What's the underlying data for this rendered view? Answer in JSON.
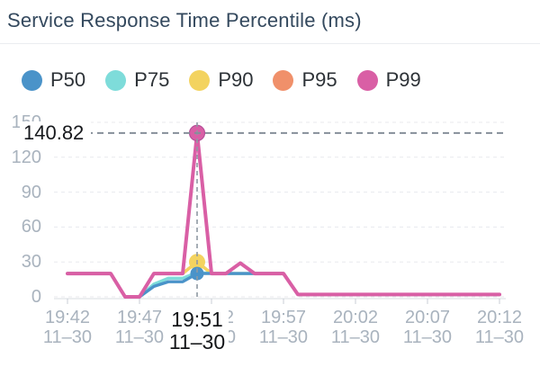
{
  "header": {
    "title": "Service Response Time Percentile (ms)"
  },
  "chart_data": {
    "type": "line",
    "title": "Service Response Time Percentile (ms)",
    "xlabel": "",
    "ylabel": "",
    "ylim": [
      0,
      150
    ],
    "y_ticks": [
      0,
      30,
      60,
      90,
      120,
      150
    ],
    "grid": true,
    "legend_position": "top",
    "x_ticks": [
      {
        "minute": 0,
        "time": "19:42",
        "date": "11–30"
      },
      {
        "minute": 5,
        "time": "19:47",
        "date": "11–30"
      },
      {
        "minute": 10,
        "time": "19:52",
        "date": "11–30"
      },
      {
        "minute": 15,
        "time": "19:57",
        "date": "11–30"
      },
      {
        "minute": 20,
        "time": "20:02",
        "date": "11–30"
      },
      {
        "minute": 25,
        "time": "20:07",
        "date": "11–30"
      },
      {
        "minute": 30,
        "time": "20:12",
        "date": "11–30"
      }
    ],
    "x_minutes": [
      0,
      1,
      2,
      3,
      4,
      5,
      6,
      7,
      8,
      9,
      10,
      11,
      12,
      13,
      14,
      15,
      16,
      17,
      18,
      19,
      20,
      21,
      22,
      23,
      24,
      25,
      26,
      27,
      28,
      29,
      30
    ],
    "series": [
      {
        "name": "P50",
        "color": "#4a93c9",
        "z": 4,
        "values": [
          20,
          20,
          20,
          20,
          0,
          0,
          9,
          13,
          13,
          20,
          20,
          20,
          20,
          20,
          20,
          20,
          2,
          2,
          2,
          2,
          2,
          2,
          2,
          2,
          2,
          2,
          2,
          2,
          2,
          2,
          2
        ]
      },
      {
        "name": "P75",
        "color": "#7edcda",
        "z": 3,
        "values": [
          20,
          20,
          20,
          20,
          0,
          0,
          11,
          16,
          16,
          21,
          20,
          20,
          20,
          20,
          20,
          20,
          2,
          2,
          2,
          2,
          2,
          2,
          2,
          2,
          2,
          2,
          2,
          2,
          2,
          2,
          2
        ]
      },
      {
        "name": "P90",
        "color": "#f3d35f",
        "z": 2,
        "values": [
          20,
          20,
          20,
          20,
          0,
          0,
          20,
          20,
          20,
          30,
          20,
          20,
          20,
          20,
          20,
          20,
          2,
          2,
          2,
          2,
          2,
          2,
          2,
          2,
          2,
          2,
          2,
          2,
          2,
          2,
          2
        ]
      },
      {
        "name": "P95",
        "color": "#f0906a",
        "z": 1,
        "values": [
          20,
          20,
          20,
          20,
          0,
          0,
          20,
          20,
          20,
          30,
          20,
          20,
          29,
          20,
          20,
          20,
          2,
          2,
          2,
          2,
          2,
          2,
          2,
          2,
          2,
          2,
          2,
          2,
          2,
          2,
          2
        ]
      },
      {
        "name": "P99",
        "color": "#d95fa5",
        "z": 5,
        "values": [
          20,
          20,
          20,
          20,
          0,
          0,
          20,
          20,
          20,
          140.82,
          20,
          20,
          29,
          20,
          20,
          20,
          2,
          2,
          2,
          2,
          2,
          2,
          2,
          2,
          2,
          2,
          2,
          2,
          2,
          2,
          2
        ]
      }
    ],
    "highlight": {
      "minute": 9,
      "time": "19:51",
      "date": "11–30",
      "series": "P99",
      "value": 140.82,
      "annotation": "140.82",
      "markers": [
        {
          "series": "P90",
          "value": 30,
          "r": 9
        },
        {
          "series": "P50",
          "value": 20,
          "r": 7.5
        },
        {
          "series": "P99",
          "value": 140.82,
          "r": 8.5,
          "stroke": "#b8509a"
        }
      ]
    },
    "colors": {
      "grid": "#e8eaee",
      "axis": "#d8dce0",
      "tick": "#c9ced4",
      "crosshair": "#8f99a3",
      "annotation_line": "#868f99"
    }
  }
}
